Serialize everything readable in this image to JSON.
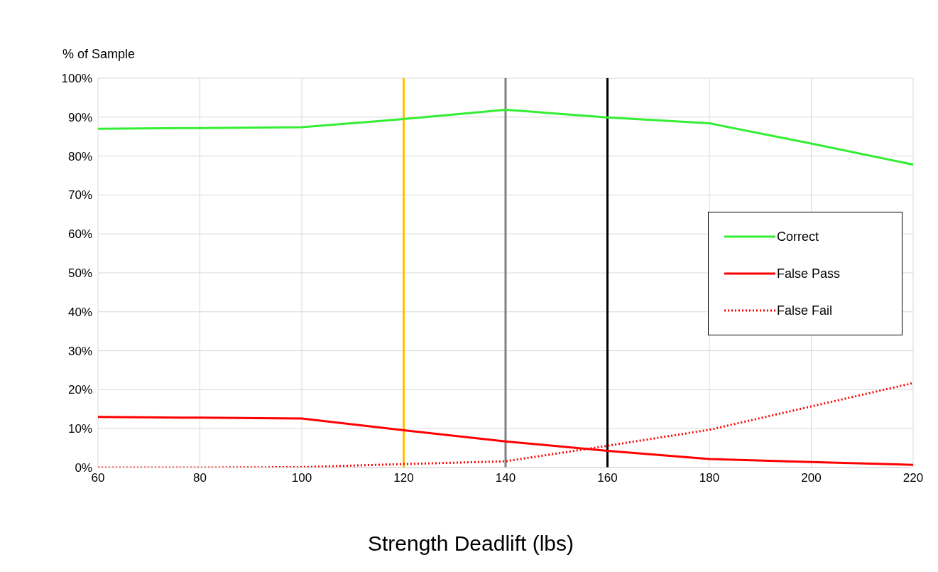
{
  "chart_data": {
    "type": "line",
    "xlabel": "Strength Deadlift (lbs)",
    "ylabel": "% of Sample",
    "x": [
      60,
      80,
      100,
      120,
      140,
      160,
      180,
      200,
      220
    ],
    "series": [
      {
        "name": "Correct",
        "color": "#33ee33",
        "line_style": "solid",
        "values": [
          87.0,
          87.2,
          87.4,
          89.5,
          91.9,
          89.9,
          88.4,
          83.2,
          77.8
        ]
      },
      {
        "name": "False Pass",
        "color": "#ff0000",
        "line_style": "solid",
        "values": [
          13.0,
          12.8,
          12.6,
          9.6,
          6.7,
          4.3,
          2.2,
          1.4,
          0.7
        ]
      },
      {
        "name": "False Fail",
        "color": "#ff0000",
        "line_style": "dotted",
        "values": [
          0,
          0,
          0.1,
          0.9,
          1.6,
          5.6,
          9.7,
          15.7,
          21.7
        ]
      }
    ],
    "xlim": [
      60,
      220
    ],
    "xticks": [
      60,
      80,
      100,
      120,
      140,
      160,
      180,
      200,
      220
    ],
    "ylim": [
      0,
      100
    ],
    "yticks": [
      {
        "value": 0,
        "label": "0%"
      },
      {
        "value": 10,
        "label": "10%"
      },
      {
        "value": 20,
        "label": "20%"
      },
      {
        "value": 30,
        "label": "30%"
      },
      {
        "value": 40,
        "label": "40%"
      },
      {
        "value": 50,
        "label": "50%"
      },
      {
        "value": 60,
        "label": "60%"
      },
      {
        "value": 70,
        "label": "70%"
      },
      {
        "value": 80,
        "label": "80%"
      },
      {
        "value": 90,
        "label": "90%"
      },
      {
        "value": 100,
        "label": "100%"
      }
    ],
    "ref_lines": [
      {
        "axis": "x",
        "value": 120,
        "color": "#ffc000"
      },
      {
        "axis": "x",
        "value": 140,
        "color": "#808080"
      },
      {
        "axis": "x",
        "value": 160,
        "color": "#000000"
      }
    ],
    "grid": true,
    "legend": "right",
    "marker": "none"
  }
}
